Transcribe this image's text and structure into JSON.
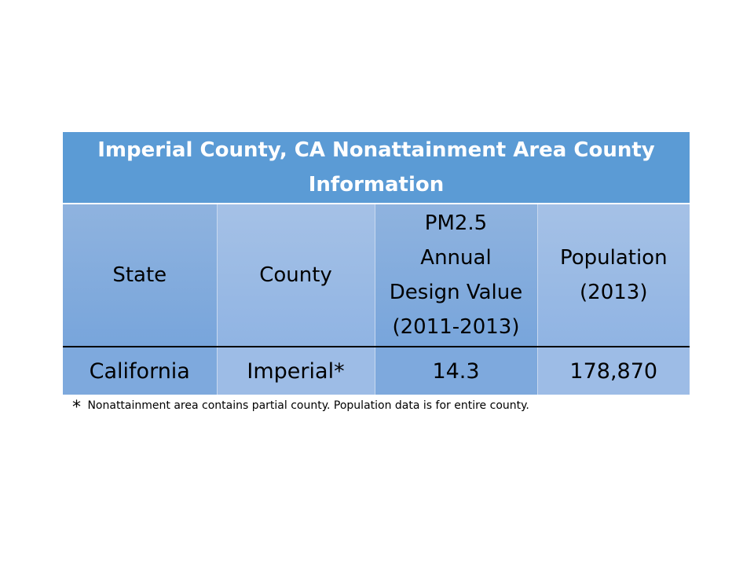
{
  "table": {
    "title": "Imperial County, CA Nonattainment Area County Information",
    "headers": {
      "state": "State",
      "county": "County",
      "pm25_line1": "PM2.5",
      "pm25_line2": "Annual",
      "pm25_line3": "Design Value",
      "pm25_line4": "(2011-2013)",
      "population_line1": "Population",
      "population_line2": "(2013)"
    },
    "row": {
      "state": "California",
      "county": "Imperial*",
      "pm25": "14.3",
      "population": "178,870"
    }
  },
  "footnote": {
    "symbol": "*",
    "text": "Nonattainment area contains partial county.  Population data is for entire county."
  },
  "colors": {
    "title_bg": "#5b9bd5",
    "cell_dark": "#7ea9dd",
    "cell_light": "#9dbce6"
  }
}
